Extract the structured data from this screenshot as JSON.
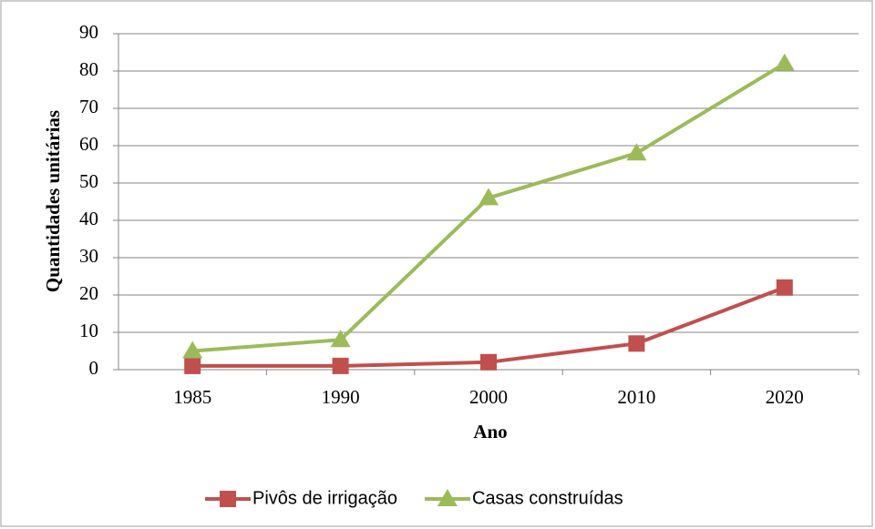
{
  "chart_data": {
    "type": "line",
    "x_label": "Ano",
    "y_label": "Quantidades unitárias",
    "categories": [
      "1985",
      "1990",
      "2000",
      "2010",
      "2020"
    ],
    "series": [
      {
        "name": "Pivôs de irrigação",
        "color": "#c0504d",
        "marker": "square",
        "values": [
          1,
          1,
          2,
          7,
          22
        ]
      },
      {
        "name": "Casas construídas",
        "color": "#9bbb59",
        "marker": "triangle",
        "values": [
          5,
          8,
          46,
          58,
          82
        ]
      }
    ],
    "ylim": [
      0,
      90
    ],
    "yticks": [
      0,
      10,
      20,
      30,
      40,
      50,
      60,
      70,
      80,
      90
    ],
    "grid": true,
    "legend": "bottom"
  }
}
